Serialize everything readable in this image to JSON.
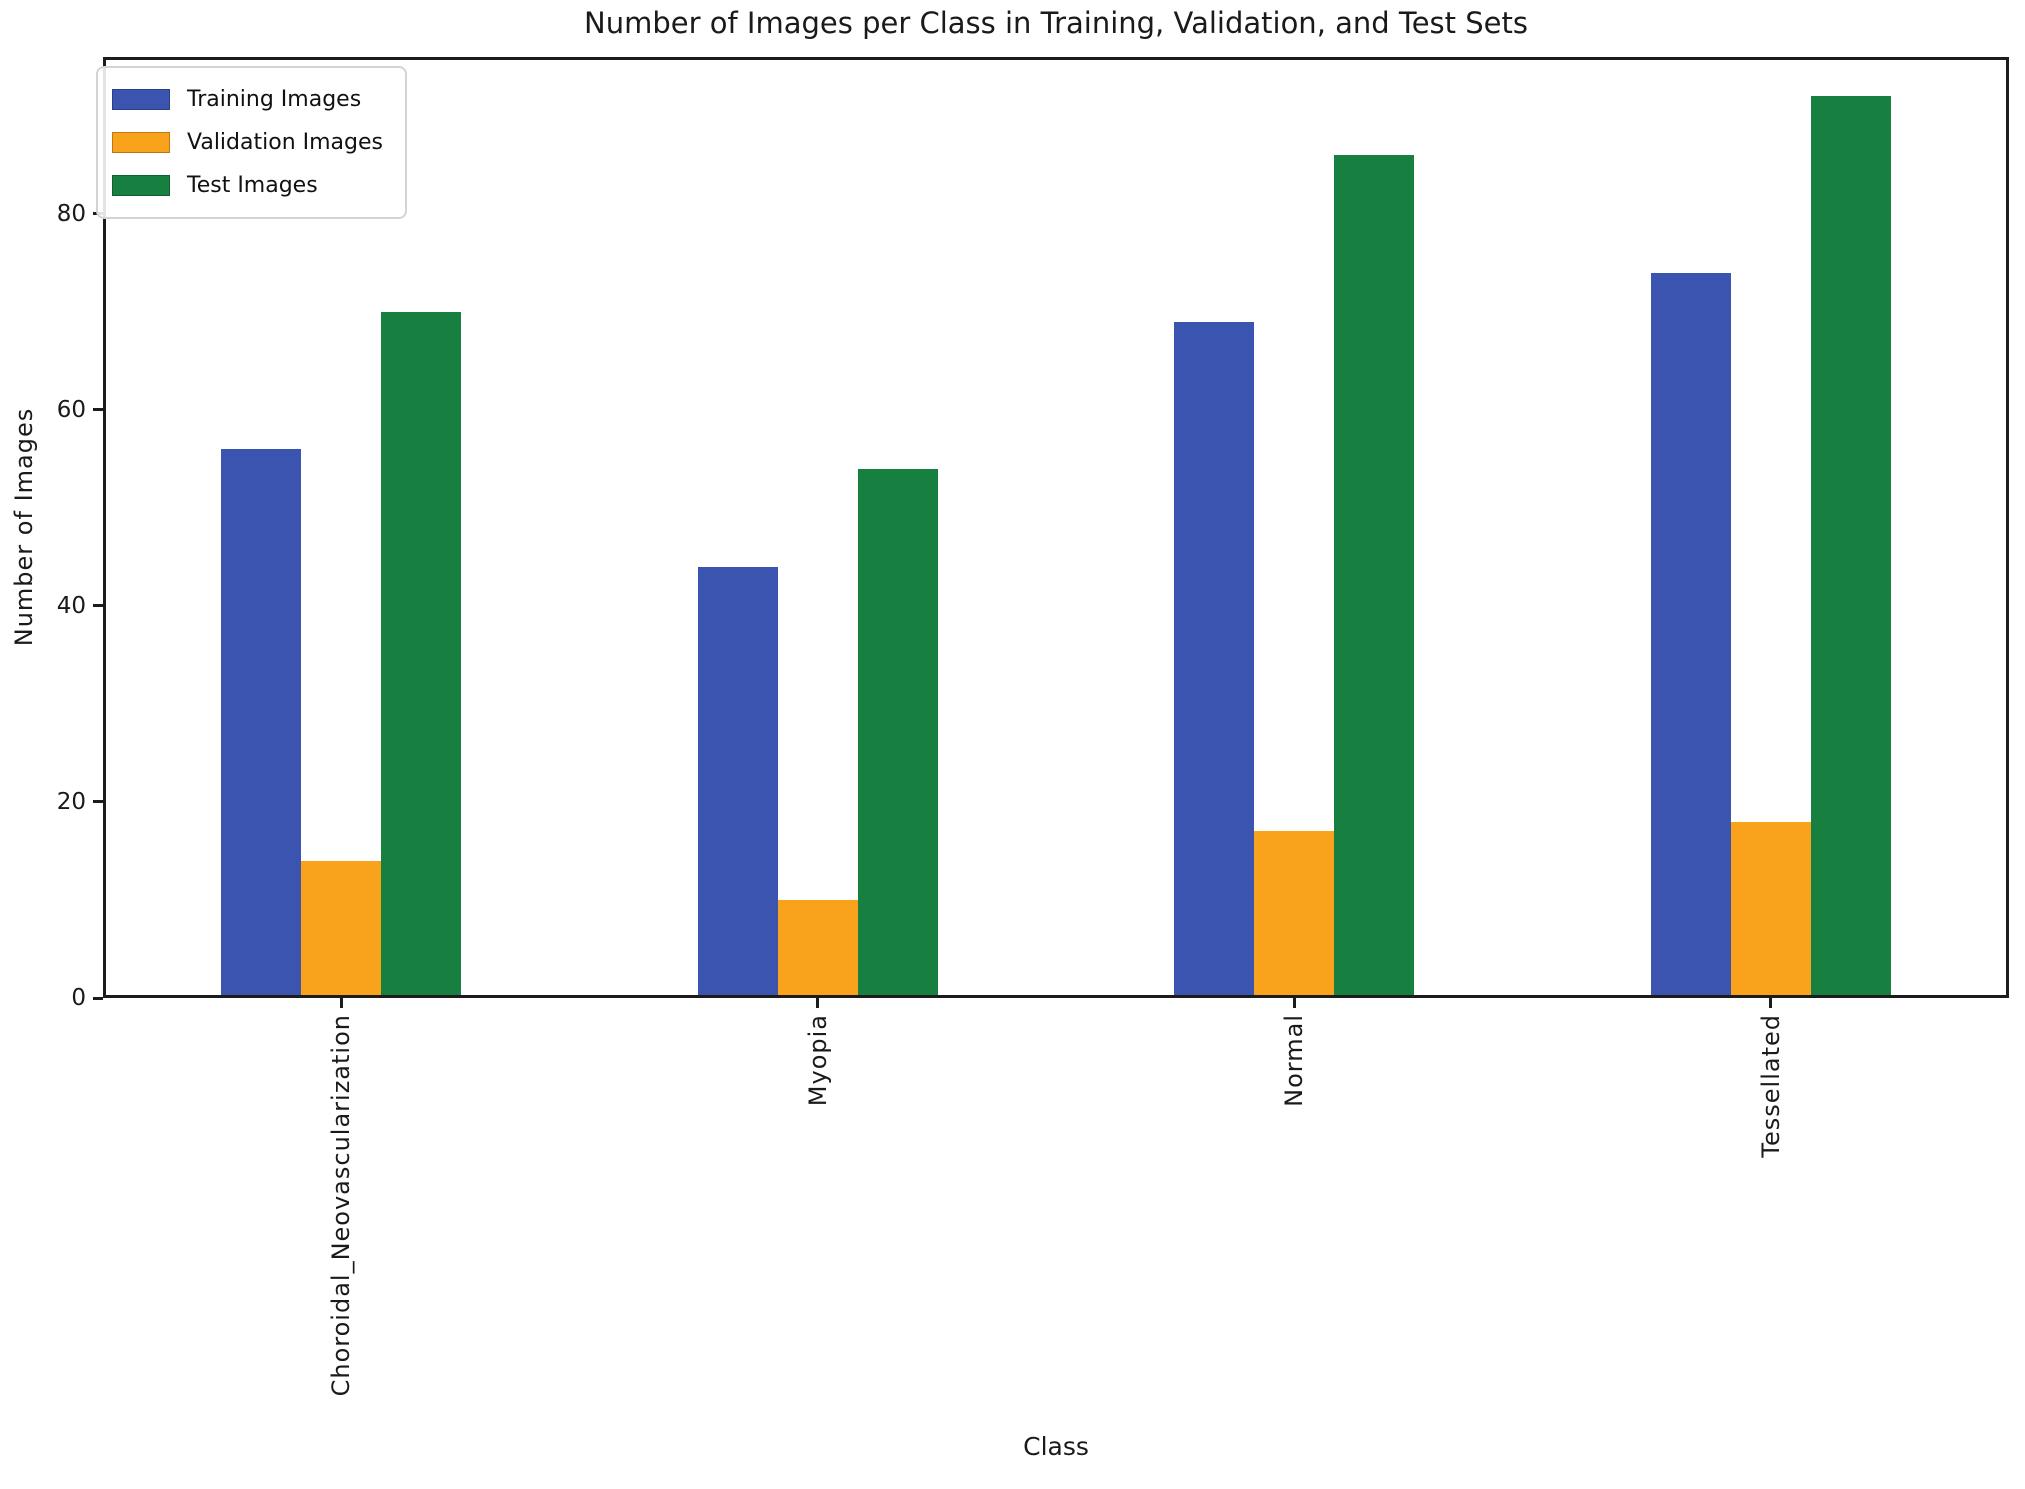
{
  "title": "Number of Images per Class in Training, Validation, and Test Sets",
  "chart_data": {
    "type": "bar",
    "categories": [
      "Choroidal_Neovascularization",
      "Myopia",
      "Normal",
      "Tessellated"
    ],
    "series": [
      {
        "name": "Training Images",
        "color": "#3b54b0",
        "values": [
          56,
          44,
          69,
          74
        ]
      },
      {
        "name": "Validation Images",
        "color": "#f9a21b",
        "values": [
          14,
          10,
          17,
          18
        ]
      },
      {
        "name": "Test Images",
        "color": "#178040",
        "values": [
          70,
          54,
          86,
          92
        ]
      }
    ],
    "xlabel": "Class",
    "ylabel": "Number of Images",
    "ylim": [
      0,
      96
    ],
    "yticks": [
      0,
      20,
      40,
      60,
      80
    ],
    "legend_position": "upper left",
    "grid": false
  }
}
